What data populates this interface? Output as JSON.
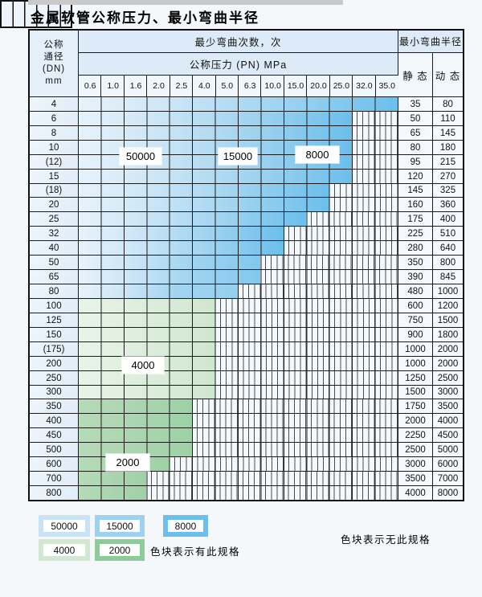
{
  "title": "金属软管公称压力、最小弯曲半径",
  "table": {
    "header": {
      "dn_lines": [
        "公称",
        "通径",
        "(DN)",
        "mm"
      ],
      "bend_times": "最少弯曲次数，次",
      "pressure": "公称压力 (PN) MPa",
      "radius": "最小弯曲半径",
      "static": "静 态",
      "dynamic": "动 态",
      "pressures": [
        "0.6",
        "1.0",
        "1.6",
        "2.0",
        "2.5",
        "4.0",
        "5.0",
        "6.3",
        "10.0",
        "15.0",
        "20.0",
        "25.0",
        "32.0",
        "35.0"
      ]
    },
    "rows": [
      {
        "dn": "4",
        "span": 14,
        "zone": "blue",
        "static": "35",
        "dynamic": "80"
      },
      {
        "dn": "6",
        "span": 12,
        "zone": "blue",
        "static": "50",
        "dynamic": "110"
      },
      {
        "dn": "8",
        "span": 12,
        "zone": "blue",
        "static": "65",
        "dynamic": "145"
      },
      {
        "dn": "10",
        "span": 12,
        "zone": "blue",
        "static": "80",
        "dynamic": "180"
      },
      {
        "dn": "(12)",
        "span": 12,
        "zone": "blue",
        "static": "95",
        "dynamic": "215"
      },
      {
        "dn": "15",
        "span": 12,
        "zone": "blue",
        "static": "120",
        "dynamic": "270"
      },
      {
        "dn": "(18)",
        "span": 11,
        "zone": "blue",
        "static": "145",
        "dynamic": "325"
      },
      {
        "dn": "20",
        "span": 11,
        "zone": "blue",
        "static": "160",
        "dynamic": "360"
      },
      {
        "dn": "25",
        "span": 10,
        "zone": "blue",
        "static": "175",
        "dynamic": "400"
      },
      {
        "dn": "32",
        "span": 9,
        "zone": "blue",
        "static": "225",
        "dynamic": "510"
      },
      {
        "dn": "40",
        "span": 9,
        "zone": "blue",
        "static": "280",
        "dynamic": "640"
      },
      {
        "dn": "50",
        "span": 8,
        "zone": "blue",
        "static": "350",
        "dynamic": "800"
      },
      {
        "dn": "65",
        "span": 8,
        "zone": "blue",
        "static": "390",
        "dynamic": "845"
      },
      {
        "dn": "80",
        "span": 7,
        "zone": "blue",
        "static": "480",
        "dynamic": "1000"
      },
      {
        "dn": "100",
        "span": 6,
        "zone": "green_light",
        "static": "600",
        "dynamic": "1200"
      },
      {
        "dn": "125",
        "span": 6,
        "zone": "green_light",
        "static": "750",
        "dynamic": "1500"
      },
      {
        "dn": "150",
        "span": 6,
        "zone": "green_light",
        "static": "900",
        "dynamic": "1800"
      },
      {
        "dn": "(175)",
        "span": 6,
        "zone": "green_light",
        "static": "1000",
        "dynamic": "2000"
      },
      {
        "dn": "200",
        "span": 6,
        "zone": "green_light",
        "static": "1000",
        "dynamic": "2000"
      },
      {
        "dn": "250",
        "span": 6,
        "zone": "green_light",
        "static": "1250",
        "dynamic": "2500"
      },
      {
        "dn": "300",
        "span": 6,
        "zone": "green_light",
        "static": "1500",
        "dynamic": "3000"
      },
      {
        "dn": "350",
        "span": 5,
        "zone": "green_dark",
        "static": "1750",
        "dynamic": "3500"
      },
      {
        "dn": "400",
        "span": 5,
        "zone": "green_dark",
        "static": "2000",
        "dynamic": "4000"
      },
      {
        "dn": "450",
        "span": 5,
        "zone": "green_dark",
        "static": "2250",
        "dynamic": "4500"
      },
      {
        "dn": "500",
        "span": 5,
        "zone": "green_dark",
        "static": "2500",
        "dynamic": "5000"
      },
      {
        "dn": "600",
        "span": 4,
        "zone": "green_dark",
        "static": "3000",
        "dynamic": "6000"
      },
      {
        "dn": "700",
        "span": 3,
        "zone": "green_dark",
        "static": "3500",
        "dynamic": "7000"
      },
      {
        "dn": "800",
        "span": 3,
        "zone": "green_dark",
        "static": "4000",
        "dynamic": "8000"
      }
    ],
    "zone_labels": [
      "50000",
      "15000",
      "8000",
      "4000",
      "2000"
    ]
  },
  "legend": {
    "items": [
      {
        "label": "50000",
        "color": "#c8e3f5"
      },
      {
        "label": "15000",
        "color": "#9dd1f0"
      },
      {
        "label": "8000",
        "color": "#6bbfec"
      },
      {
        "label": "4000",
        "color": "#d3e8d3"
      },
      {
        "label": "2000",
        "color": "#8ecb9b"
      }
    ],
    "has_spec_note": "色块表示有此规格",
    "no_spec_note": "色块表示无此规格"
  },
  "colors": {
    "blue_pale": "#e8f3fb",
    "blue_light": "#cbe5f6",
    "blue_mid": "#a2d4f0",
    "blue_dark": "#6bbfec",
    "blue_end_short8": "#80c8ee",
    "blue_end_short7": "#95d0ef",
    "green_light_a": "#e9f4e9",
    "green_light_b": "#d0e6d0",
    "green_dark_a": "#b6dab9",
    "green_dark_b": "#9ed1a5",
    "grid_line": "#1b1b1b"
  }
}
